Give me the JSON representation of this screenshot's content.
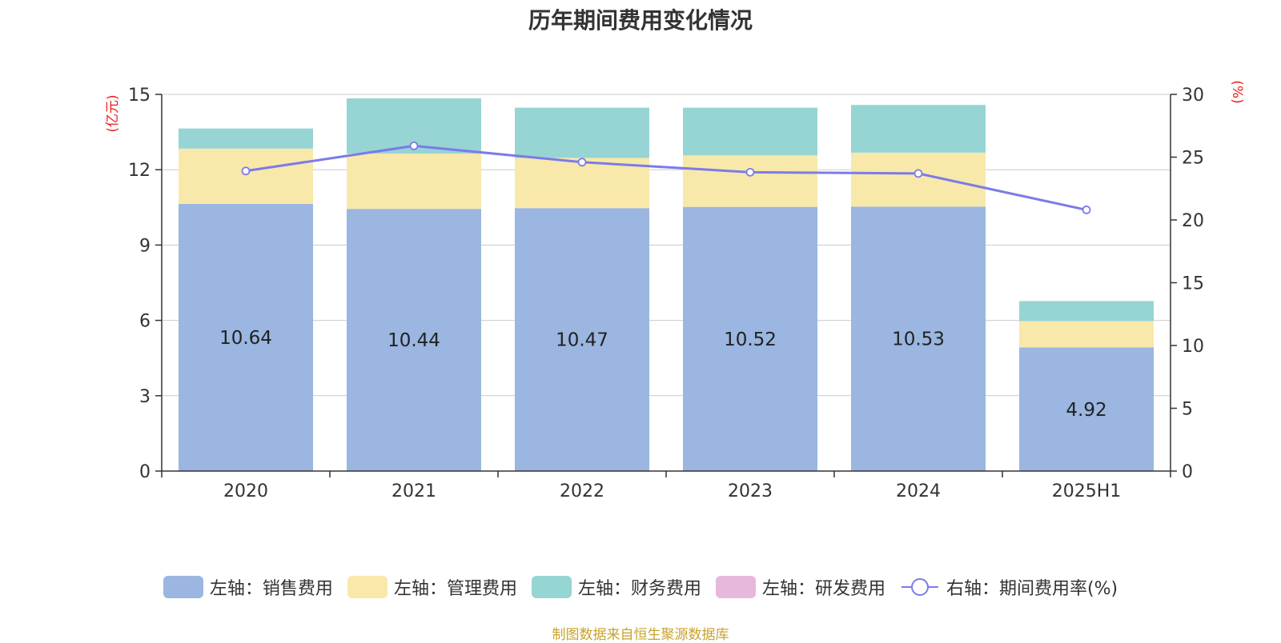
{
  "chart_data": {
    "type": "bar",
    "title": "历年期间费用变化情况",
    "source": "制图数据来自恒生聚源数据库",
    "categories": [
      "2020",
      "2021",
      "2022",
      "2023",
      "2024",
      "2025H1"
    ],
    "left_axis": {
      "unit_label": "(亿元)",
      "ylim": [
        0,
        15
      ],
      "ticks": [
        "0",
        "3",
        "6",
        "9",
        "12",
        "15"
      ]
    },
    "right_axis": {
      "unit_label": "(%)",
      "ylim": [
        0,
        30
      ],
      "ticks": [
        "0",
        "5",
        "10",
        "15",
        "20",
        "25",
        "30"
      ]
    },
    "series": [
      {
        "name": "左轴：销售费用",
        "axis": "left",
        "type": "bar",
        "color": "#9ab6e1",
        "values": [
          10.64,
          10.44,
          10.47,
          10.52,
          10.53,
          4.92
        ],
        "data_labels": [
          "10.64",
          "10.44",
          "10.47",
          "10.52",
          "10.53",
          "4.92"
        ]
      },
      {
        "name": "左轴：管理费用",
        "axis": "left",
        "type": "bar",
        "color": "#f8e8aa",
        "values": [
          2.2,
          2.2,
          2.0,
          2.05,
          2.15,
          1.05
        ]
      },
      {
        "name": "左轴：财务费用",
        "axis": "left",
        "type": "bar",
        "color": "#97d4d4",
        "values": [
          0.8,
          2.2,
          2.0,
          1.9,
          1.9,
          0.8
        ]
      },
      {
        "name": "左轴：研发费用",
        "axis": "left",
        "type": "bar",
        "color": "#e8b8db",
        "values": [
          0,
          0,
          0,
          0,
          0,
          0
        ]
      },
      {
        "name": "右轴：期间费用率(%)",
        "axis": "right",
        "type": "line",
        "color": "#7b7be8",
        "values": [
          23.9,
          25.9,
          24.6,
          23.8,
          23.7,
          20.8
        ]
      }
    ],
    "grid": true,
    "legend_position": "bottom"
  }
}
